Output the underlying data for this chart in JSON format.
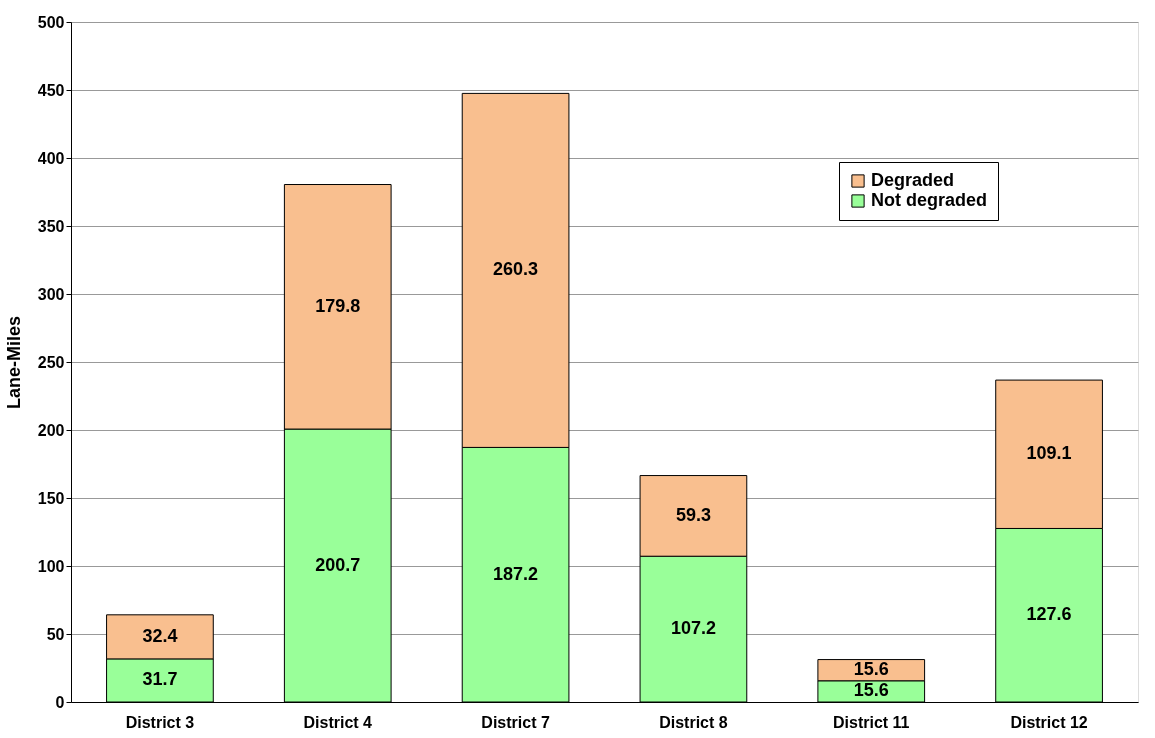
{
  "chart_data": {
    "type": "bar",
    "ylabel": "Lane-Miles",
    "categories": [
      "District 3",
      "District 4",
      "District 7",
      "District 8",
      "District 11",
      "District 12"
    ],
    "stacked": true,
    "series": [
      {
        "name": "Not degraded",
        "color": "#99ff99",
        "values": [
          31.7,
          200.7,
          187.2,
          107.2,
          15.6,
          127.6
        ]
      },
      {
        "name": "Degraded",
        "color": "#f9bf8f",
        "values": [
          32.4,
          179.8,
          260.3,
          59.3,
          15.6,
          109.1
        ]
      }
    ],
    "ylim": [
      0,
      500
    ],
    "yticks": [
      0,
      50,
      100,
      150,
      200,
      250,
      300,
      350,
      400,
      450,
      500
    ],
    "grid": "y",
    "legend": "top right",
    "data_labels": true
  }
}
